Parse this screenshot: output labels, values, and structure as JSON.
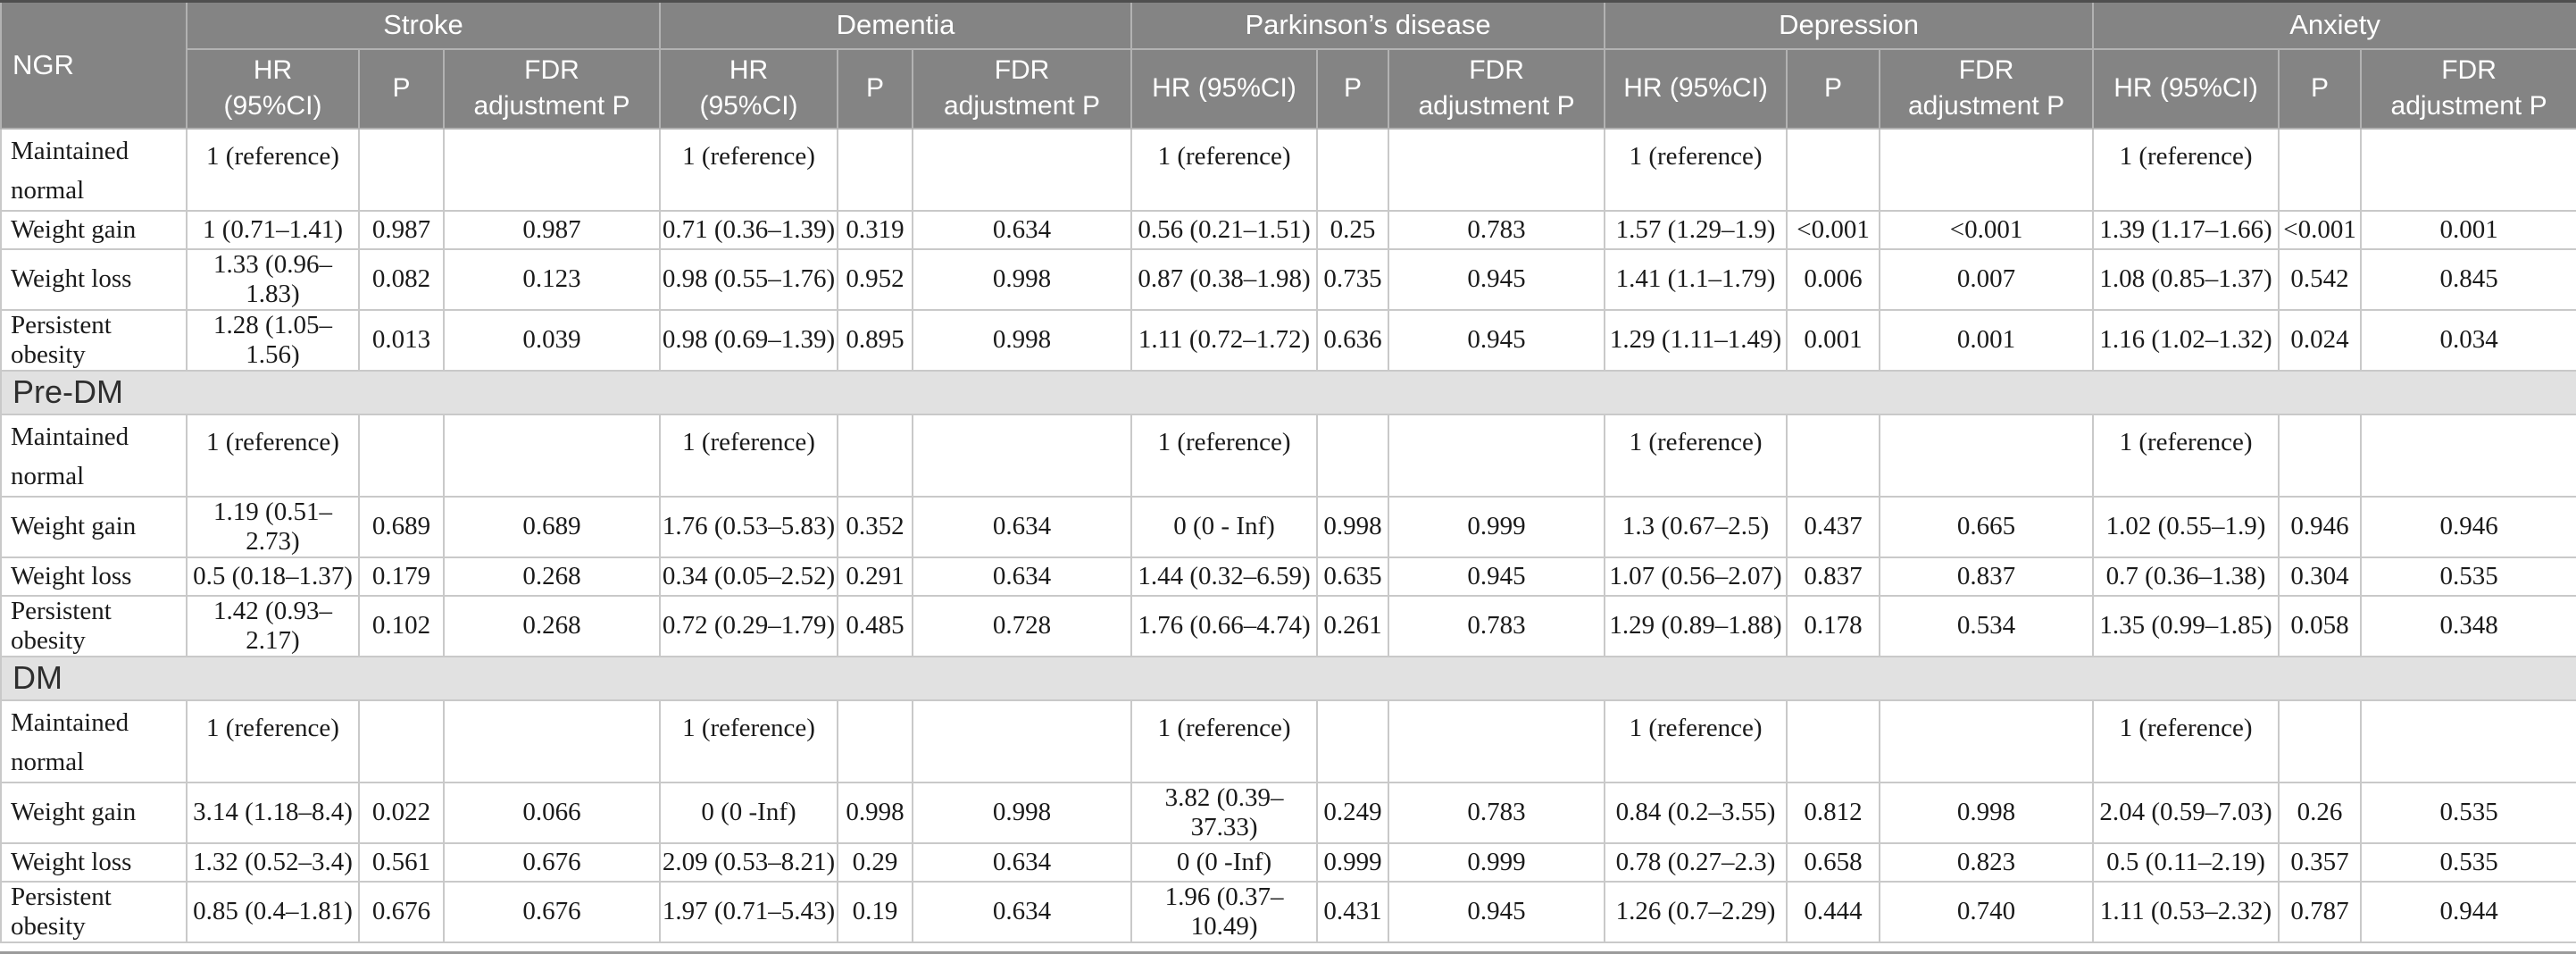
{
  "table": {
    "corner_label": "NGR",
    "headers": {
      "hr_line1": "HR",
      "hr_line2": "(95%CI)",
      "hr_one_line": "HR (95%CI)",
      "p": "P",
      "fdr_line1": "FDR",
      "fdr_line2": "adjustment P"
    },
    "groups": [
      {
        "label": "Stroke"
      },
      {
        "label": "Dementia"
      },
      {
        "label": "Parkinson’s disease"
      },
      {
        "label": "Depression"
      },
      {
        "label": "Anxiety"
      }
    ],
    "colors": {
      "header_bg": "#848484",
      "header_text": "#ffffff",
      "band_bg": "#e1e1e1",
      "grid": "#c9c9c9",
      "body_text": "#1a1a1a"
    },
    "sections": [
      {
        "band": null,
        "rows": [
          {
            "label": "Maintained normal",
            "cells": [
              [
                "1 (reference)",
                "",
                ""
              ],
              [
                "1 (reference)",
                "",
                ""
              ],
              [
                "1 (reference)",
                "",
                ""
              ],
              [
                "1 (reference)",
                "",
                ""
              ],
              [
                "1 (reference)",
                "",
                ""
              ]
            ]
          },
          {
            "label": "Weight gain",
            "cells": [
              [
                "1 (0.71–1.41)",
                "0.987",
                "0.987"
              ],
              [
                "0.71 (0.36–1.39)",
                "0.319",
                "0.634"
              ],
              [
                "0.56 (0.21–1.51)",
                "0.25",
                "0.783"
              ],
              [
                "1.57 (1.29–1.9)",
                "<0.001",
                "<0.001"
              ],
              [
                "1.39 (1.17–1.66)",
                "<0.001",
                "0.001"
              ]
            ]
          },
          {
            "label": "Weight loss",
            "cells": [
              [
                "1.33 (0.96–1.83)",
                "0.082",
                "0.123"
              ],
              [
                "0.98 (0.55–1.76)",
                "0.952",
                "0.998"
              ],
              [
                "0.87 (0.38–1.98)",
                "0.735",
                "0.945"
              ],
              [
                "1.41 (1.1–1.79)",
                "0.006",
                "0.007"
              ],
              [
                "1.08 (0.85–1.37)",
                "0.542",
                "0.845"
              ]
            ]
          },
          {
            "label": "Persistent obesity",
            "cells": [
              [
                "1.28 (1.05–1.56)",
                "0.013",
                "0.039"
              ],
              [
                "0.98 (0.69–1.39)",
                "0.895",
                "0.998"
              ],
              [
                "1.11 (0.72–1.72)",
                "0.636",
                "0.945"
              ],
              [
                "1.29 (1.11–1.49)",
                "0.001",
                "0.001"
              ],
              [
                "1.16 (1.02–1.32)",
                "0.024",
                "0.034"
              ]
            ]
          }
        ]
      },
      {
        "band": "Pre-DM",
        "rows": [
          {
            "label": "Maintained normal",
            "cells": [
              [
                "1 (reference)",
                "",
                ""
              ],
              [
                "1 (reference)",
                "",
                ""
              ],
              [
                "1 (reference)",
                "",
                ""
              ],
              [
                "1 (reference)",
                "",
                ""
              ],
              [
                "1 (reference)",
                "",
                ""
              ]
            ]
          },
          {
            "label": "Weight gain",
            "cells": [
              [
                "1.19 (0.51–2.73)",
                "0.689",
                "0.689"
              ],
              [
                "1.76 (0.53–5.83)",
                "0.352",
                "0.634"
              ],
              [
                "0 (0 - Inf)",
                "0.998",
                "0.999"
              ],
              [
                "1.3 (0.67–2.5)",
                "0.437",
                "0.665"
              ],
              [
                "1.02 (0.55–1.9)",
                "0.946",
                "0.946"
              ]
            ]
          },
          {
            "label": "Weight loss",
            "cells": [
              [
                "0.5 (0.18–1.37)",
                "0.179",
                "0.268"
              ],
              [
                "0.34 (0.05–2.52)",
                "0.291",
                "0.634"
              ],
              [
                "1.44 (0.32–6.59)",
                "0.635",
                "0.945"
              ],
              [
                "1.07 (0.56–2.07)",
                "0.837",
                "0.837"
              ],
              [
                "0.7 (0.36–1.38)",
                "0.304",
                "0.535"
              ]
            ]
          },
          {
            "label": "Persistent obesity",
            "cells": [
              [
                "1.42 (0.93–2.17)",
                "0.102",
                "0.268"
              ],
              [
                "0.72 (0.29–1.79)",
                "0.485",
                "0.728"
              ],
              [
                "1.76 (0.66–4.74)",
                "0.261",
                "0.783"
              ],
              [
                "1.29 (0.89–1.88)",
                "0.178",
                "0.534"
              ],
              [
                "1.35 (0.99–1.85)",
                "0.058",
                "0.348"
              ]
            ]
          }
        ]
      },
      {
        "band": "DM",
        "rows": [
          {
            "label": "Maintained normal",
            "cells": [
              [
                "1 (reference)",
                "",
                ""
              ],
              [
                "1 (reference)",
                "",
                ""
              ],
              [
                "1 (reference)",
                "",
                ""
              ],
              [
                "1 (reference)",
                "",
                ""
              ],
              [
                "1 (reference)",
                "",
                ""
              ]
            ]
          },
          {
            "label": "Weight gain",
            "cells": [
              [
                "3.14 (1.18–8.4)",
                "0.022",
                "0.066"
              ],
              [
                "0 (0 -Inf)",
                "0.998",
                "0.998"
              ],
              [
                "3.82 (0.39–37.33)",
                "0.249",
                "0.783"
              ],
              [
                "0.84 (0.2–3.55)",
                "0.812",
                "0.998"
              ],
              [
                "2.04 (0.59–7.03)",
                "0.26",
                "0.535"
              ]
            ]
          },
          {
            "label": "Weight loss",
            "cells": [
              [
                "1.32 (0.52–3.4)",
                "0.561",
                "0.676"
              ],
              [
                "2.09 (0.53–8.21)",
                "0.29",
                "0.634"
              ],
              [
                "0 (0 -Inf)",
                "0.999",
                "0.999"
              ],
              [
                "0.78 (0.27–2.3)",
                "0.658",
                "0.823"
              ],
              [
                "0.5 (0.11–2.19)",
                "0.357",
                "0.535"
              ]
            ]
          },
          {
            "label": "Persistent obesity",
            "cells": [
              [
                "0.85 (0.4–1.81)",
                "0.676",
                "0.676"
              ],
              [
                "1.97 (0.71–5.43)",
                "0.19",
                "0.634"
              ],
              [
                "1.96 (0.37–10.49)",
                "0.431",
                "0.945"
              ],
              [
                "1.26 (0.7–2.29)",
                "0.444",
                "0.740"
              ],
              [
                "1.11 (0.53–2.32)",
                "0.787",
                "0.944"
              ]
            ]
          }
        ]
      }
    ]
  }
}
